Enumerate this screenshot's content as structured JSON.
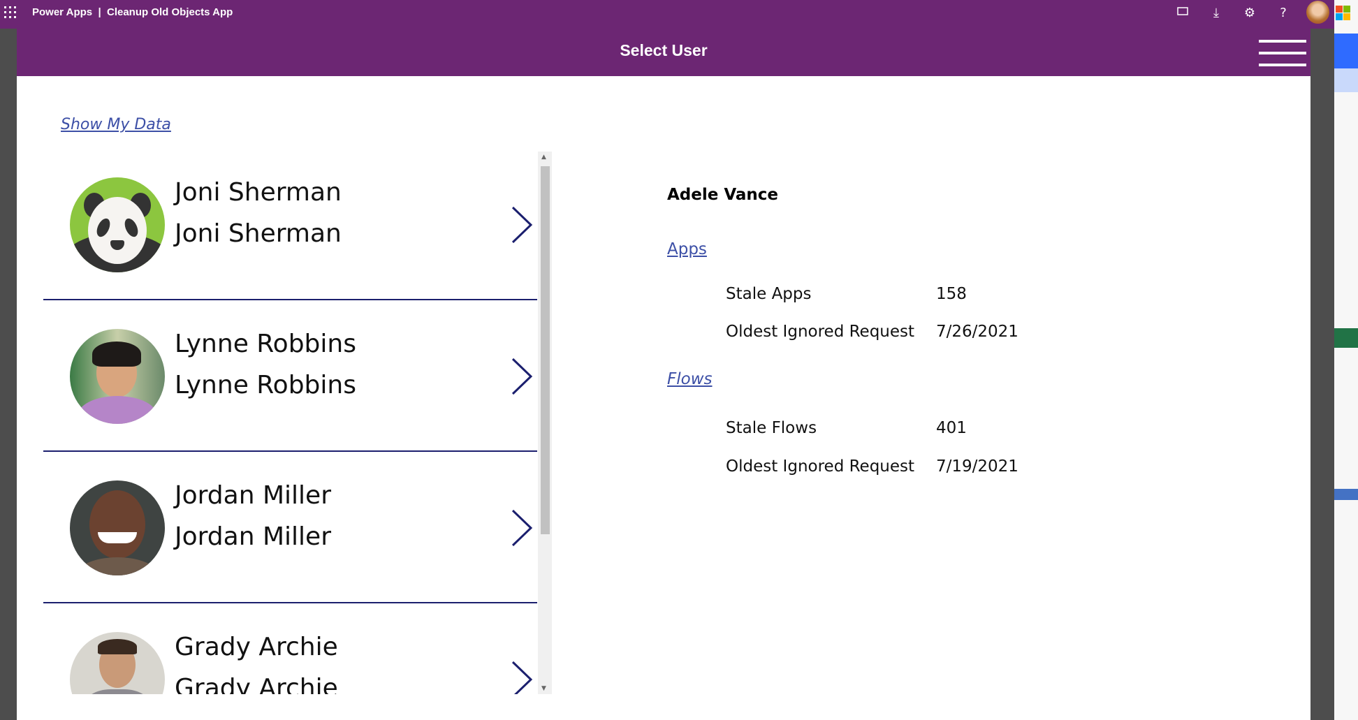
{
  "topbar": {
    "app_title": "Power Apps  |  Cleanup Old Objects App",
    "icons": [
      "waffle-icon",
      "fit-screen-icon",
      "download-icon",
      "settings-icon",
      "help-icon",
      "user-avatar"
    ]
  },
  "header": {
    "title": "Select User"
  },
  "show_my_data": "Show My Data",
  "users": [
    {
      "name": "Joni Sherman",
      "subtitle": "Joni Sherman"
    },
    {
      "name": "Lynne Robbins",
      "subtitle": "Lynne Robbins"
    },
    {
      "name": "Jordan Miller",
      "subtitle": "Jordan Miller"
    },
    {
      "name": "Grady Archie",
      "subtitle": "Grady Archie"
    }
  ],
  "detail": {
    "name": "Adele Vance",
    "apps": {
      "title": "Apps",
      "stale_label": "Stale Apps",
      "stale_value": "158",
      "oldest_label": "Oldest Ignored Request",
      "oldest_value": "7/26/2021"
    },
    "flows": {
      "title": "Flows",
      "stale_label": "Stale Flows",
      "stale_value": "401",
      "oldest_label": "Oldest Ignored Request",
      "oldest_value": "7/19/2021"
    }
  },
  "colors": {
    "brand": "#6c2673",
    "link": "#3c4fa6",
    "separator": "#1b1f6e"
  }
}
